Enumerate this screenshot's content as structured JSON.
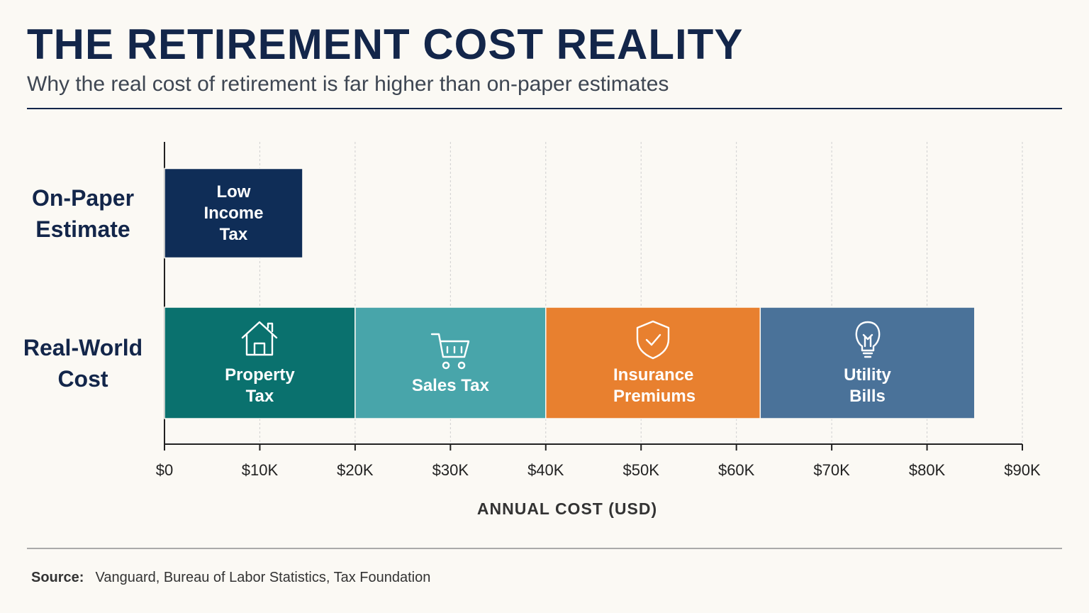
{
  "chart_data": {
    "type": "stacked-horizontal-bar",
    "title": "THE RETIREMENT COST REALITY",
    "subtitle": "Why the real cost of retirement is far higher than on-paper estimates",
    "xlabel": "ANNUAL COST (USD)",
    "source_label": "Source:",
    "source": "Vanguard, Bureau of Labor Statistics, Tax Foundation",
    "categories": [
      "On-Paper Estimate",
      "Real-World Cost"
    ],
    "series": [
      {
        "name": "Low Income Tax",
        "color": "#0f2d57",
        "values": [
          14500,
          null
        ]
      },
      {
        "name": "Property Tax",
        "color": "#0a716e",
        "values": [
          null,
          20000
        ]
      },
      {
        "name": "Sales Tax",
        "color": "#48a5aa",
        "values": [
          null,
          20000
        ]
      },
      {
        "name": "Insurance Premiums",
        "color": "#e8802f",
        "values": [
          null,
          22500
        ]
      },
      {
        "name": "Utility Bills",
        "color": "#4a7299",
        "values": [
          null,
          22500
        ]
      }
    ],
    "xlim": [
      0,
      90000
    ],
    "xticks": [
      {
        "value": 0,
        "label": "$0"
      },
      {
        "value": 10000,
        "label": "$10K"
      },
      {
        "value": 20000,
        "label": "$20K"
      },
      {
        "value": 30000,
        "label": "$30K"
      },
      {
        "value": 40000,
        "label": "$40K"
      },
      {
        "value": 50000,
        "label": "$50K"
      },
      {
        "value": 60000,
        "label": "$60K"
      },
      {
        "value": 70000,
        "label": "$70K"
      },
      {
        "value": 80000,
        "label": "$80K"
      },
      {
        "value": 90000,
        "label": "$90K"
      }
    ],
    "grid": true
  }
}
